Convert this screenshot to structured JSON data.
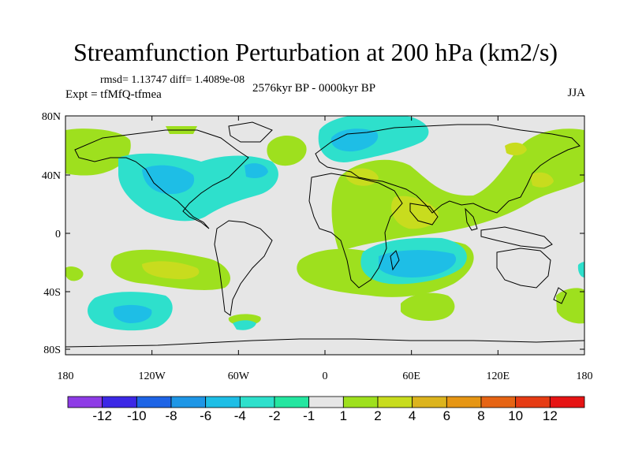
{
  "title": "Streamfunction Perturbation at 200 hPa (km2/s)",
  "rmsd_line": "rmsd= 1.13747 diff= 1.4089e-08",
  "experiment": "Expt = tfMfQ-tfmea",
  "period": "2576kyr BP - 0000kyr BP",
  "season": "JJA",
  "map": {
    "background_color": "#e6e6e6",
    "lat_labels": [
      "80N",
      "40N",
      "0",
      "40S",
      "80S"
    ],
    "lon_labels": [
      "180",
      "120W",
      "60W",
      "0",
      "60E",
      "120E",
      "180"
    ]
  },
  "colorbar": {
    "colors": [
      "#8e3ce6",
      "#3c28e6",
      "#1e64e6",
      "#1e96e6",
      "#1ebee6",
      "#2ee0cc",
      "#24e6a0",
      "#e6e6e6",
      "#9ee01e",
      "#c8dc1e",
      "#dcb41e",
      "#e69614",
      "#e66414",
      "#e63c14",
      "#e61414"
    ],
    "labels": [
      "-12",
      "-10",
      "-8",
      "-6",
      "-4",
      "-2",
      "-1",
      "1",
      "2",
      "4",
      "6",
      "8",
      "10",
      "12"
    ]
  }
}
